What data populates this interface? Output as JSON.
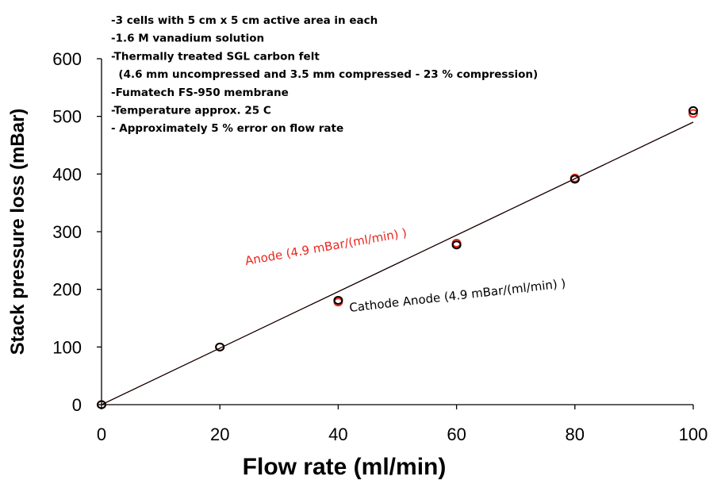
{
  "chart_data": {
    "type": "scatter",
    "xlabel": "Flow rate (ml/min)",
    "ylabel": "Stack pressure loss (mBar)",
    "xlim": [
      0,
      100
    ],
    "ylim": [
      0,
      600
    ],
    "x_ticks": [
      "0",
      "20",
      "40",
      "60",
      "80",
      "100"
    ],
    "y_ticks": [
      "0",
      "100",
      "200",
      "300",
      "400",
      "500",
      "600"
    ],
    "grid": false,
    "series": [
      {
        "color": "#e8261c",
        "marker": "open-circle",
        "x": [
          0,
          20,
          40,
          60,
          80,
          100
        ],
        "y": [
          0,
          100,
          178,
          280,
          393,
          505
        ]
      },
      {
        "color": "#000000",
        "marker": "open-circle",
        "x": [
          0,
          20,
          40,
          60,
          80,
          100
        ],
        "y": [
          0,
          100,
          181,
          277,
          391,
          510
        ]
      }
    ],
    "fit_lines": [
      {
        "color": "#e8261c",
        "slope": 4.9,
        "intercept": 0
      },
      {
        "color": "#000000",
        "slope": 4.9,
        "intercept": 0
      }
    ],
    "annotations": {
      "anode_fit": "Anode (4.9 mBar/(ml/min) )",
      "cathode_fit": "Cathode Anode (4.9 mBar/(ml/min) )",
      "notes": [
        "-3 cells with 5 cm x 5 cm active area in each",
        "-1.6 M vanadium solution",
        "-Thermally treated SGL carbon felt",
        "  (4.6 mm uncompressed and 3.5 mm compressed - 23 % compression)",
        "-Fumatech FS-950 membrane",
        "-Temperature approx. 25 C",
        "- Approximately 5 % error on flow rate"
      ]
    }
  }
}
